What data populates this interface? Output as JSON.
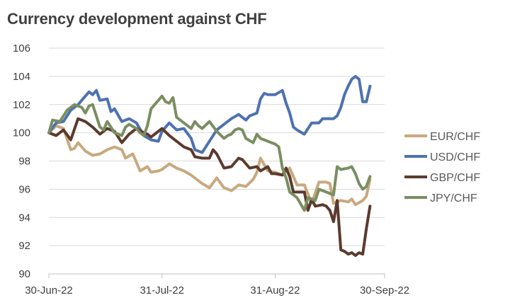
{
  "chart_data": {
    "type": "line",
    "title": "Currency development against CHF",
    "xlabel": "",
    "ylabel": "",
    "ylim": [
      90,
      106
    ],
    "yticks": [
      90,
      92,
      94,
      96,
      98,
      100,
      102,
      104,
      106
    ],
    "x_tick_labels": [
      "30-Jun-22",
      "31-Jul-22",
      "31-Aug-22",
      "30-Sep-22"
    ],
    "x_tick_positions": [
      0,
      31,
      62,
      92
    ],
    "x_range": [
      0,
      92
    ],
    "grid": "horizontal",
    "legend_placement": "right",
    "series": [
      {
        "name": "EUR/CHF",
        "color": "#C8A97E",
        "points": [
          [
            0,
            100
          ],
          [
            2,
            100.5
          ],
          [
            4,
            100.3
          ],
          [
            6,
            98.8
          ],
          [
            7,
            98.9
          ],
          [
            8,
            99.3
          ],
          [
            10,
            98.7
          ],
          [
            12,
            98.4
          ],
          [
            14,
            98.5
          ],
          [
            16,
            98.8
          ],
          [
            18,
            99
          ],
          [
            20,
            98.8
          ],
          [
            21,
            98.2
          ],
          [
            23,
            98.5
          ],
          [
            25,
            97.3
          ],
          [
            27,
            97.6
          ],
          [
            28,
            97.2
          ],
          [
            30,
            97.3
          ],
          [
            31,
            97.4
          ],
          [
            33,
            97.8
          ],
          [
            35,
            97.5
          ],
          [
            37,
            97.3
          ],
          [
            39,
            97
          ],
          [
            40,
            96.8
          ],
          [
            42,
            96.4
          ],
          [
            44,
            96.1
          ],
          [
            46,
            96.8
          ],
          [
            48,
            96.1
          ],
          [
            50,
            95.9
          ],
          [
            52,
            96.3
          ],
          [
            54,
            96.2
          ],
          [
            56,
            96.7
          ],
          [
            57,
            97.2
          ],
          [
            58,
            98.2
          ],
          [
            60,
            97.3
          ],
          [
            62,
            97.2
          ],
          [
            64,
            97
          ],
          [
            66,
            97.5
          ],
          [
            68,
            96.3
          ],
          [
            70,
            96.3
          ],
          [
            72,
            95
          ],
          [
            74,
            96.5
          ],
          [
            76,
            96.5
          ],
          [
            77,
            96.4
          ],
          [
            78,
            95
          ],
          [
            80,
            95.2
          ],
          [
            82,
            95.1
          ],
          [
            83,
            95.3
          ],
          [
            84,
            94.9
          ],
          [
            86,
            95.2
          ],
          [
            87,
            95.5
          ],
          [
            88,
            96.7
          ]
        ]
      },
      {
        "name": "USD/CHF",
        "color": "#4E72B0",
        "points": [
          [
            0,
            100
          ],
          [
            2,
            100.7
          ],
          [
            4,
            100.8
          ],
          [
            6,
            101.6
          ],
          [
            8,
            102
          ],
          [
            10,
            102.6
          ],
          [
            11,
            102.9
          ],
          [
            12,
            102.7
          ],
          [
            13,
            103
          ],
          [
            14,
            102.3
          ],
          [
            16,
            102.4
          ],
          [
            17,
            101.5
          ],
          [
            18,
            101.7
          ],
          [
            20,
            100.8
          ],
          [
            22,
            101
          ],
          [
            24,
            100.7
          ],
          [
            26,
            99.8
          ],
          [
            28,
            99.5
          ],
          [
            30,
            99.4
          ],
          [
            31,
            100.1
          ],
          [
            33,
            100.7
          ],
          [
            35,
            100.2
          ],
          [
            37,
            100.3
          ],
          [
            39,
            99.6
          ],
          [
            40,
            98.8
          ],
          [
            42,
            98.6
          ],
          [
            44,
            99.4
          ],
          [
            46,
            100.2
          ],
          [
            48,
            100.6
          ],
          [
            50,
            101
          ],
          [
            52,
            101.3
          ],
          [
            54,
            100.9
          ],
          [
            55,
            101.2
          ],
          [
            57,
            101.4
          ],
          [
            58,
            102.4
          ],
          [
            59,
            102.8
          ],
          [
            60,
            102.7
          ],
          [
            62,
            102.7
          ],
          [
            64,
            103
          ],
          [
            65,
            102.1
          ],
          [
            66,
            101.4
          ],
          [
            67,
            100.4
          ],
          [
            68,
            100.2
          ],
          [
            70,
            99.9
          ],
          [
            72,
            100.7
          ],
          [
            74,
            100.7
          ],
          [
            75,
            101
          ],
          [
            78,
            101
          ],
          [
            79,
            101.2
          ],
          [
            80,
            101.8
          ],
          [
            81,
            102.7
          ],
          [
            82,
            103.3
          ],
          [
            83,
            103.8
          ],
          [
            84,
            104
          ],
          [
            85,
            103.8
          ],
          [
            86,
            102.2
          ],
          [
            87,
            102.2
          ],
          [
            88,
            103.3
          ]
        ]
      },
      {
        "name": "GBP/CHF",
        "color": "#5B3A2E",
        "points": [
          [
            0,
            100
          ],
          [
            2,
            99.8
          ],
          [
            4,
            100.2
          ],
          [
            6,
            99.5
          ],
          [
            8,
            101
          ],
          [
            10,
            100.8
          ],
          [
            12,
            100.4
          ],
          [
            14,
            99.9
          ],
          [
            16,
            100.3
          ],
          [
            18,
            100.1
          ],
          [
            20,
            99.3
          ],
          [
            22,
            99.9
          ],
          [
            24,
            100.3
          ],
          [
            26,
            100
          ],
          [
            27,
            99.9
          ],
          [
            28,
            99.7
          ],
          [
            30,
            100.1
          ],
          [
            31,
            100.3
          ],
          [
            33,
            99.8
          ],
          [
            35,
            99.4
          ],
          [
            37,
            99
          ],
          [
            39,
            98.8
          ],
          [
            40,
            98.3
          ],
          [
            42,
            98.2
          ],
          [
            44,
            98.2
          ],
          [
            45,
            98.8
          ],
          [
            46,
            98.5
          ],
          [
            48,
            97.5
          ],
          [
            50,
            97.6
          ],
          [
            52,
            98.2
          ],
          [
            53,
            98.1
          ],
          [
            55,
            97.5
          ],
          [
            57,
            97.6
          ],
          [
            58,
            97.3
          ],
          [
            60,
            97.6
          ],
          [
            61,
            97.1
          ],
          [
            62,
            97.1
          ],
          [
            64,
            97
          ],
          [
            65,
            97.5
          ],
          [
            66,
            96.9
          ],
          [
            67,
            95.8
          ],
          [
            69,
            95.8
          ],
          [
            70,
            95.8
          ],
          [
            71,
            94.5
          ],
          [
            72,
            95.3
          ],
          [
            73,
            94.8
          ],
          [
            75,
            94.9
          ],
          [
            76,
            94.8
          ],
          [
            77,
            94.5
          ],
          [
            78,
            93.7
          ],
          [
            79,
            95.2
          ],
          [
            80,
            91.7
          ],
          [
            81,
            91.6
          ],
          [
            82,
            91.4
          ],
          [
            83,
            91.5
          ],
          [
            84,
            91.3
          ],
          [
            85,
            91.5
          ],
          [
            86,
            91.4
          ],
          [
            87,
            93.2
          ],
          [
            88,
            94.8
          ]
        ]
      },
      {
        "name": "JPY/CHF",
        "color": "#7A8E62",
        "points": [
          [
            0,
            100
          ],
          [
            1,
            100.9
          ],
          [
            3,
            100.8
          ],
          [
            5,
            101.6
          ],
          [
            7,
            102
          ],
          [
            9,
            101.8
          ],
          [
            10,
            101.4
          ],
          [
            11,
            101.9
          ],
          [
            12,
            102
          ],
          [
            14,
            100.4
          ],
          [
            15,
            100.2
          ],
          [
            16,
            100.8
          ],
          [
            17,
            100.4
          ],
          [
            18,
            100
          ],
          [
            20,
            99.8
          ],
          [
            21,
            100.4
          ],
          [
            22,
            100.6
          ],
          [
            24,
            100.3
          ],
          [
            25,
            100
          ],
          [
            26,
            99.8
          ],
          [
            27,
            100.5
          ],
          [
            28,
            101.7
          ],
          [
            30,
            102.3
          ],
          [
            31,
            102.6
          ],
          [
            32,
            102.2
          ],
          [
            33,
            102.1
          ],
          [
            34,
            102.5
          ],
          [
            35,
            101.1
          ],
          [
            37,
            100.7
          ],
          [
            39,
            100.3
          ],
          [
            40,
            100.8
          ],
          [
            41,
            100.5
          ],
          [
            42,
            100.3
          ],
          [
            44,
            100.8
          ],
          [
            46,
            100.1
          ],
          [
            48,
            99.6
          ],
          [
            49,
            99.8
          ],
          [
            50,
            99.9
          ],
          [
            51,
            100.2
          ],
          [
            52,
            100.3
          ],
          [
            53,
            100.2
          ],
          [
            54,
            99.6
          ],
          [
            56,
            99.3
          ],
          [
            57,
            99.9
          ],
          [
            58,
            99.6
          ],
          [
            60,
            99.4
          ],
          [
            62,
            99.2
          ],
          [
            63,
            99
          ],
          [
            64,
            97.5
          ],
          [
            65,
            96.8
          ],
          [
            66,
            95.8
          ],
          [
            68,
            95.4
          ],
          [
            70,
            94.5
          ],
          [
            71,
            95.4
          ],
          [
            72,
            95.3
          ],
          [
            73,
            95.2
          ],
          [
            74,
            96
          ],
          [
            76,
            95.8
          ],
          [
            78,
            95.6
          ],
          [
            79,
            97.6
          ],
          [
            80,
            97.4
          ],
          [
            82,
            97.5
          ],
          [
            83,
            97.6
          ],
          [
            84,
            97.1
          ],
          [
            85,
            96.4
          ],
          [
            86,
            96
          ],
          [
            87,
            96.2
          ],
          [
            88,
            96.9
          ]
        ]
      }
    ]
  }
}
